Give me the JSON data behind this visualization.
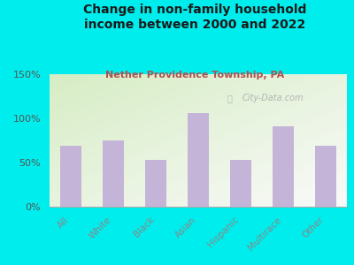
{
  "title": "Change in non-family household\nincome between 2000 and 2022",
  "subtitle": "Nether Providence Township, PA",
  "categories": [
    "All",
    "White",
    "Black",
    "Asian",
    "Hispanic",
    "Multirace",
    "Other"
  ],
  "values": [
    69,
    75,
    53,
    106,
    53,
    91,
    69
  ],
  "bar_color": "#c4b4d8",
  "background_color": "#00eded",
  "plot_bg_top_left": "#d8ecc8",
  "plot_bg_bottom_right": "#f8f8f8",
  "title_color": "#1a1a1a",
  "subtitle_color": "#b05050",
  "ytick_color": "#555555",
  "xtick_color": "#888888",
  "watermark": "City-Data.com",
  "ylim": [
    0,
    150
  ],
  "yticks": [
    0,
    50,
    100,
    150
  ],
  "ytick_labels": [
    "0%",
    "50%",
    "100%",
    "150%"
  ]
}
